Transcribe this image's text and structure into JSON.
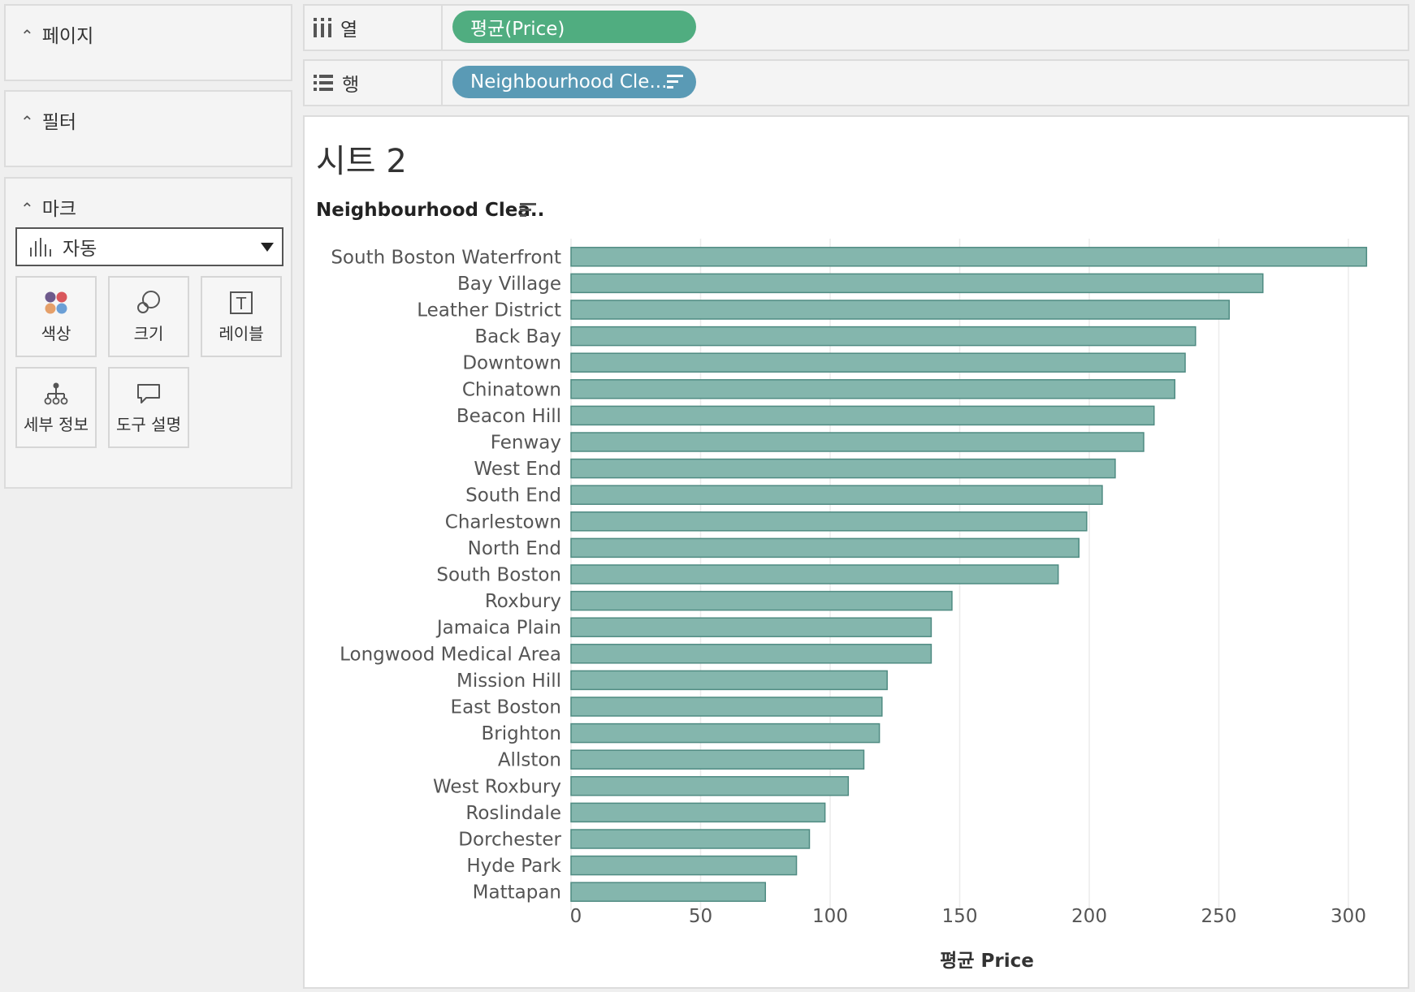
{
  "panels": {
    "pages": {
      "label": "페이지"
    },
    "filters": {
      "label": "필터"
    },
    "marks": {
      "label": "마크",
      "type": "자동",
      "buttons": {
        "color": "색상",
        "size": "크기",
        "label": "레이블",
        "detail": "세부 정보",
        "tooltip": "도구 설명"
      }
    }
  },
  "shelves": {
    "columns": {
      "label": "열",
      "pill": "평균(Price)"
    },
    "rows": {
      "label": "행",
      "pill": "Neighbourhood Cle..."
    }
  },
  "sheet": {
    "title": "시트 2"
  },
  "colors": {
    "bar_fill": "#84b6ad",
    "bar_stroke": "#4f8b82",
    "pill_green": "#50ad80",
    "pill_blue": "#5a9ab5"
  },
  "chart_data": {
    "type": "bar",
    "orientation": "horizontal",
    "row_header": "Neighbourhood Clea..",
    "categories": [
      "South Boston Waterfront",
      "Bay Village",
      "Leather District",
      "Back Bay",
      "Downtown",
      "Chinatown",
      "Beacon Hill",
      "Fenway",
      "West End",
      "South End",
      "Charlestown",
      "North End",
      "South Boston",
      "Roxbury",
      "Jamaica Plain",
      "Longwood Medical Area",
      "Mission Hill",
      "East Boston",
      "Brighton",
      "Allston",
      "West Roxbury",
      "Roslindale",
      "Dorchester",
      "Hyde Park",
      "Mattapan"
    ],
    "values": [
      307,
      267,
      254,
      241,
      237,
      233,
      225,
      221,
      210,
      205,
      199,
      196,
      188,
      147,
      139,
      139,
      122,
      120,
      119,
      113,
      107,
      98,
      92,
      87,
      75
    ],
    "xlabel": "평균 Price",
    "xlim": [
      0,
      307
    ],
    "xticks": [
      0,
      50,
      100,
      150,
      200,
      250,
      300
    ]
  }
}
